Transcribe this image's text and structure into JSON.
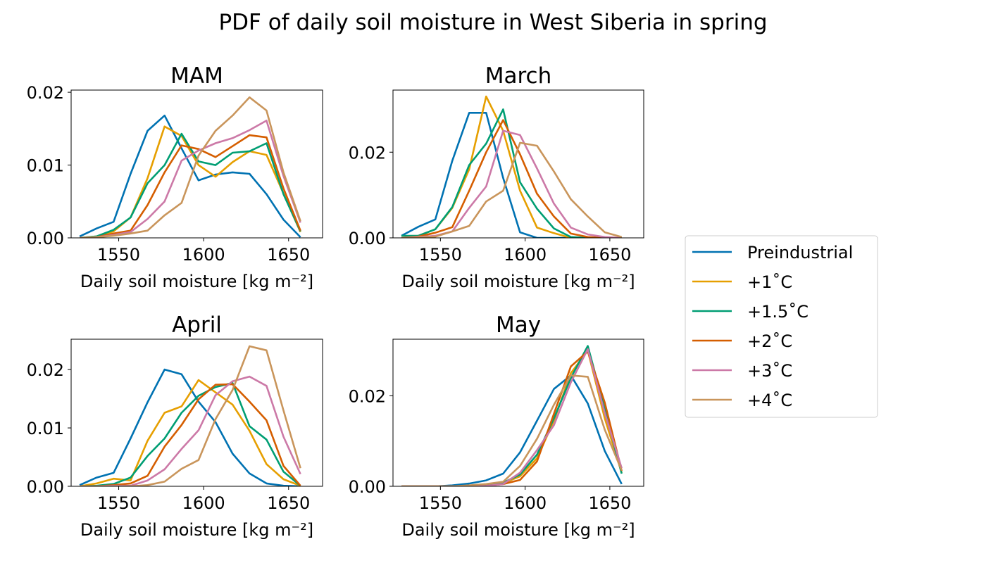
{
  "figure_title": "PDF of daily soil moisture in West Siberia in spring",
  "legend": {
    "position": "right",
    "entries": [
      {
        "name": "Preindustrial",
        "color": "#0072B2"
      },
      {
        "name": "+1˚C",
        "color": "#E69F00"
      },
      {
        "name": "+1.5˚C",
        "color": "#009E73"
      },
      {
        "name": "+2˚C",
        "color": "#D55E00"
      },
      {
        "name": "+3˚C",
        "color": "#CC79A7"
      },
      {
        "name": "+4˚C",
        "color": "#C9955B"
      }
    ]
  },
  "chart_data": [
    {
      "type": "line",
      "title": "MAM",
      "xlabel": "Daily soil moisture [kg m⁻²]",
      "ylabel": "",
      "xlim": [
        1522,
        1670
      ],
      "ylim": [
        0,
        0.0203
      ],
      "xticks": [
        1550,
        1600,
        1650
      ],
      "xtick_labels": [
        "1550",
        "1600",
        "1650"
      ],
      "yticks": [
        0,
        0.01,
        0.02
      ],
      "ytick_labels": [
        "0.00",
        "0.01",
        "0.02"
      ],
      "x": [
        1527,
        1537,
        1547,
        1557,
        1567,
        1577,
        1587,
        1597,
        1607,
        1617,
        1627,
        1637,
        1647,
        1657
      ],
      "series": [
        {
          "name": "Preindustrial",
          "values": [
            0.0002,
            0.0013,
            0.0022,
            0.0088,
            0.0147,
            0.0168,
            0.0123,
            0.0079,
            0.0087,
            0.009,
            0.0088,
            0.006,
            0.0025,
            0.0001
          ]
        },
        {
          "name": "+1˚C",
          "values": [
            0.0,
            0.0002,
            0.0009,
            0.0028,
            0.0082,
            0.0153,
            0.014,
            0.01,
            0.0084,
            0.0104,
            0.0119,
            0.0114,
            0.0061,
            0.0008
          ]
        },
        {
          "name": "+1.5˚C",
          "values": [
            0.0,
            0.0002,
            0.0011,
            0.0028,
            0.0075,
            0.01,
            0.0143,
            0.0105,
            0.01,
            0.0117,
            0.0119,
            0.013,
            0.006,
            0.0009
          ]
        },
        {
          "name": "+2˚C",
          "values": [
            0.0,
            0.0001,
            0.0006,
            0.001,
            0.0045,
            0.009,
            0.0127,
            0.0122,
            0.0111,
            0.0126,
            0.0141,
            0.0138,
            0.0068,
            0.001
          ]
        },
        {
          "name": "+3˚C",
          "values": [
            0.0,
            0.0001,
            0.0004,
            0.0008,
            0.0026,
            0.005,
            0.0106,
            0.012,
            0.013,
            0.0137,
            0.0148,
            0.0161,
            0.0085,
            0.0021
          ]
        },
        {
          "name": "+4˚C",
          "values": [
            0.0,
            0.0001,
            0.0003,
            0.0006,
            0.001,
            0.0031,
            0.0048,
            0.0113,
            0.0147,
            0.0168,
            0.0193,
            0.0175,
            0.009,
            0.0023
          ]
        }
      ]
    },
    {
      "type": "line",
      "title": "March",
      "xlabel": "Daily soil moisture [kg m⁻²]",
      "ylabel": "",
      "xlim": [
        1522,
        1670
      ],
      "ylim": [
        0,
        0.0345
      ],
      "xticks": [
        1550,
        1600,
        1650
      ],
      "xtick_labels": [
        "1550",
        "1600",
        "1650"
      ],
      "yticks": [
        0,
        0.02
      ],
      "ytick_labels": [
        "0.00",
        "0.02"
      ],
      "x": [
        1527,
        1537,
        1547,
        1557,
        1567,
        1577,
        1587,
        1597,
        1607,
        1617,
        1627,
        1637,
        1647,
        1657
      ],
      "series": [
        {
          "name": "Preindustrial",
          "values": [
            0.0005,
            0.0026,
            0.0043,
            0.018,
            0.0292,
            0.0292,
            0.014,
            0.0013,
            0.0,
            0.0,
            0.0,
            0.0,
            0.0,
            0.0
          ]
        },
        {
          "name": "+1˚C",
          "values": [
            0.0,
            0.0005,
            0.002,
            0.007,
            0.016,
            0.033,
            0.025,
            0.011,
            0.0024,
            0.0011,
            0.0,
            0.0,
            0.0,
            0.0
          ]
        },
        {
          "name": "+1.5˚C",
          "values": [
            0.0005,
            0.0005,
            0.002,
            0.0072,
            0.017,
            0.022,
            0.03,
            0.013,
            0.0068,
            0.0022,
            0.0002,
            0.0,
            0.0,
            0.0
          ]
        },
        {
          "name": "+2˚C",
          "values": [
            0.0,
            0.0003,
            0.0012,
            0.0025,
            0.011,
            0.02,
            0.0275,
            0.0195,
            0.0103,
            0.005,
            0.001,
            0.0002,
            0.0,
            0.0
          ]
        },
        {
          "name": "+3˚C",
          "values": [
            0.0,
            0.0002,
            0.0005,
            0.0015,
            0.007,
            0.012,
            0.025,
            0.024,
            0.0162,
            0.008,
            0.0024,
            0.0008,
            0.0002,
            0.0
          ]
        },
        {
          "name": "+4˚C",
          "values": [
            0.0,
            0.0001,
            0.0003,
            0.0015,
            0.0028,
            0.0085,
            0.011,
            0.0222,
            0.0215,
            0.0155,
            0.009,
            0.005,
            0.0013,
            0.0002
          ]
        }
      ]
    },
    {
      "type": "line",
      "title": "April",
      "xlabel": "Daily soil moisture [kg m⁻²]",
      "ylabel": "",
      "xlim": [
        1522,
        1670
      ],
      "ylim": [
        0,
        0.0252
      ],
      "xticks": [
        1550,
        1600,
        1650
      ],
      "xtick_labels": [
        "1550",
        "1600",
        "1650"
      ],
      "yticks": [
        0,
        0.01,
        0.02
      ],
      "ytick_labels": [
        "0.00",
        "0.01",
        "0.02"
      ],
      "x": [
        1527,
        1537,
        1547,
        1557,
        1567,
        1577,
        1587,
        1597,
        1607,
        1617,
        1627,
        1637,
        1647,
        1657
      ],
      "series": [
        {
          "name": "Preindustrial",
          "values": [
            0.0002,
            0.0015,
            0.0023,
            0.0082,
            0.0144,
            0.02,
            0.0192,
            0.0145,
            0.011,
            0.0056,
            0.0022,
            0.0005,
            0.0001,
            0.0
          ]
        },
        {
          "name": "+1˚C",
          "values": [
            0.0,
            0.0005,
            0.0013,
            0.001,
            0.0078,
            0.0126,
            0.0137,
            0.0182,
            0.0161,
            0.014,
            0.0095,
            0.0038,
            0.0012,
            0.0001
          ]
        },
        {
          "name": "+1.5˚C",
          "values": [
            0.0,
            0.0001,
            0.0004,
            0.0015,
            0.0052,
            0.0082,
            0.0126,
            0.0155,
            0.017,
            0.0177,
            0.0103,
            0.008,
            0.0025,
            0.0001
          ]
        },
        {
          "name": "+2˚C",
          "values": [
            0.0,
            0.0,
            0.0002,
            0.0005,
            0.0018,
            0.0068,
            0.0105,
            0.0149,
            0.0174,
            0.0175,
            0.0145,
            0.0113,
            0.0035,
            0.0001
          ]
        },
        {
          "name": "+3˚C",
          "values": [
            0.0,
            0.0,
            0.0001,
            0.0001,
            0.001,
            0.0029,
            0.0064,
            0.0096,
            0.0156,
            0.018,
            0.0188,
            0.0172,
            0.0085,
            0.0021
          ]
        },
        {
          "name": "+4˚C",
          "values": [
            0.0,
            0.0,
            0.0,
            0.0,
            0.0002,
            0.0008,
            0.003,
            0.0045,
            0.0115,
            0.0165,
            0.024,
            0.0233,
            0.013,
            0.0031
          ]
        }
      ]
    },
    {
      "type": "line",
      "title": "May",
      "xlabel": "Daily soil moisture [kg m⁻²]",
      "ylabel": "",
      "xlim": [
        1522,
        1670
      ],
      "ylim": [
        0,
        0.0325
      ],
      "xticks": [
        1550,
        1600,
        1650
      ],
      "xtick_labels": [
        "1550",
        "1600",
        "1650"
      ],
      "yticks": [
        0,
        0.02
      ],
      "ytick_labels": [
        "0.00",
        "0.02"
      ],
      "x": [
        1527,
        1537,
        1547,
        1557,
        1567,
        1577,
        1587,
        1597,
        1607,
        1617,
        1627,
        1637,
        1647,
        1657
      ],
      "series": [
        {
          "name": "Preindustrial",
          "values": [
            0.0,
            0.0,
            0.0,
            0.0002,
            0.0006,
            0.0013,
            0.0028,
            0.0075,
            0.0145,
            0.0215,
            0.0245,
            0.0183,
            0.0078,
            0.0005
          ]
        },
        {
          "name": "+1˚C",
          "values": [
            0.0,
            0.0,
            0.0,
            0.0,
            0.0001,
            0.0003,
            0.0007,
            0.0022,
            0.0062,
            0.0145,
            0.025,
            0.03,
            0.015,
            0.003
          ]
        },
        {
          "name": "+1.5˚C",
          "values": [
            0.0,
            0.0,
            0.0,
            0.0,
            0.0001,
            0.0003,
            0.0008,
            0.0026,
            0.007,
            0.015,
            0.024,
            0.031,
            0.017,
            0.0028
          ]
        },
        {
          "name": "+2˚C",
          "values": [
            0.0,
            0.0,
            0.0,
            0.0,
            0.0,
            0.0001,
            0.0005,
            0.0014,
            0.0055,
            0.016,
            0.0265,
            0.0298,
            0.0185,
            0.0034
          ]
        },
        {
          "name": "+3˚C",
          "values": [
            0.0,
            0.0,
            0.0,
            0.0,
            0.0,
            0.0001,
            0.0005,
            0.003,
            0.008,
            0.0135,
            0.023,
            0.0303,
            0.0162,
            0.004
          ]
        },
        {
          "name": "+4˚C",
          "values": [
            0.0,
            0.0,
            0.0,
            0.0,
            0.0002,
            0.0005,
            0.001,
            0.0045,
            0.0105,
            0.018,
            0.0245,
            0.0242,
            0.0125,
            0.0035
          ]
        }
      ]
    }
  ]
}
